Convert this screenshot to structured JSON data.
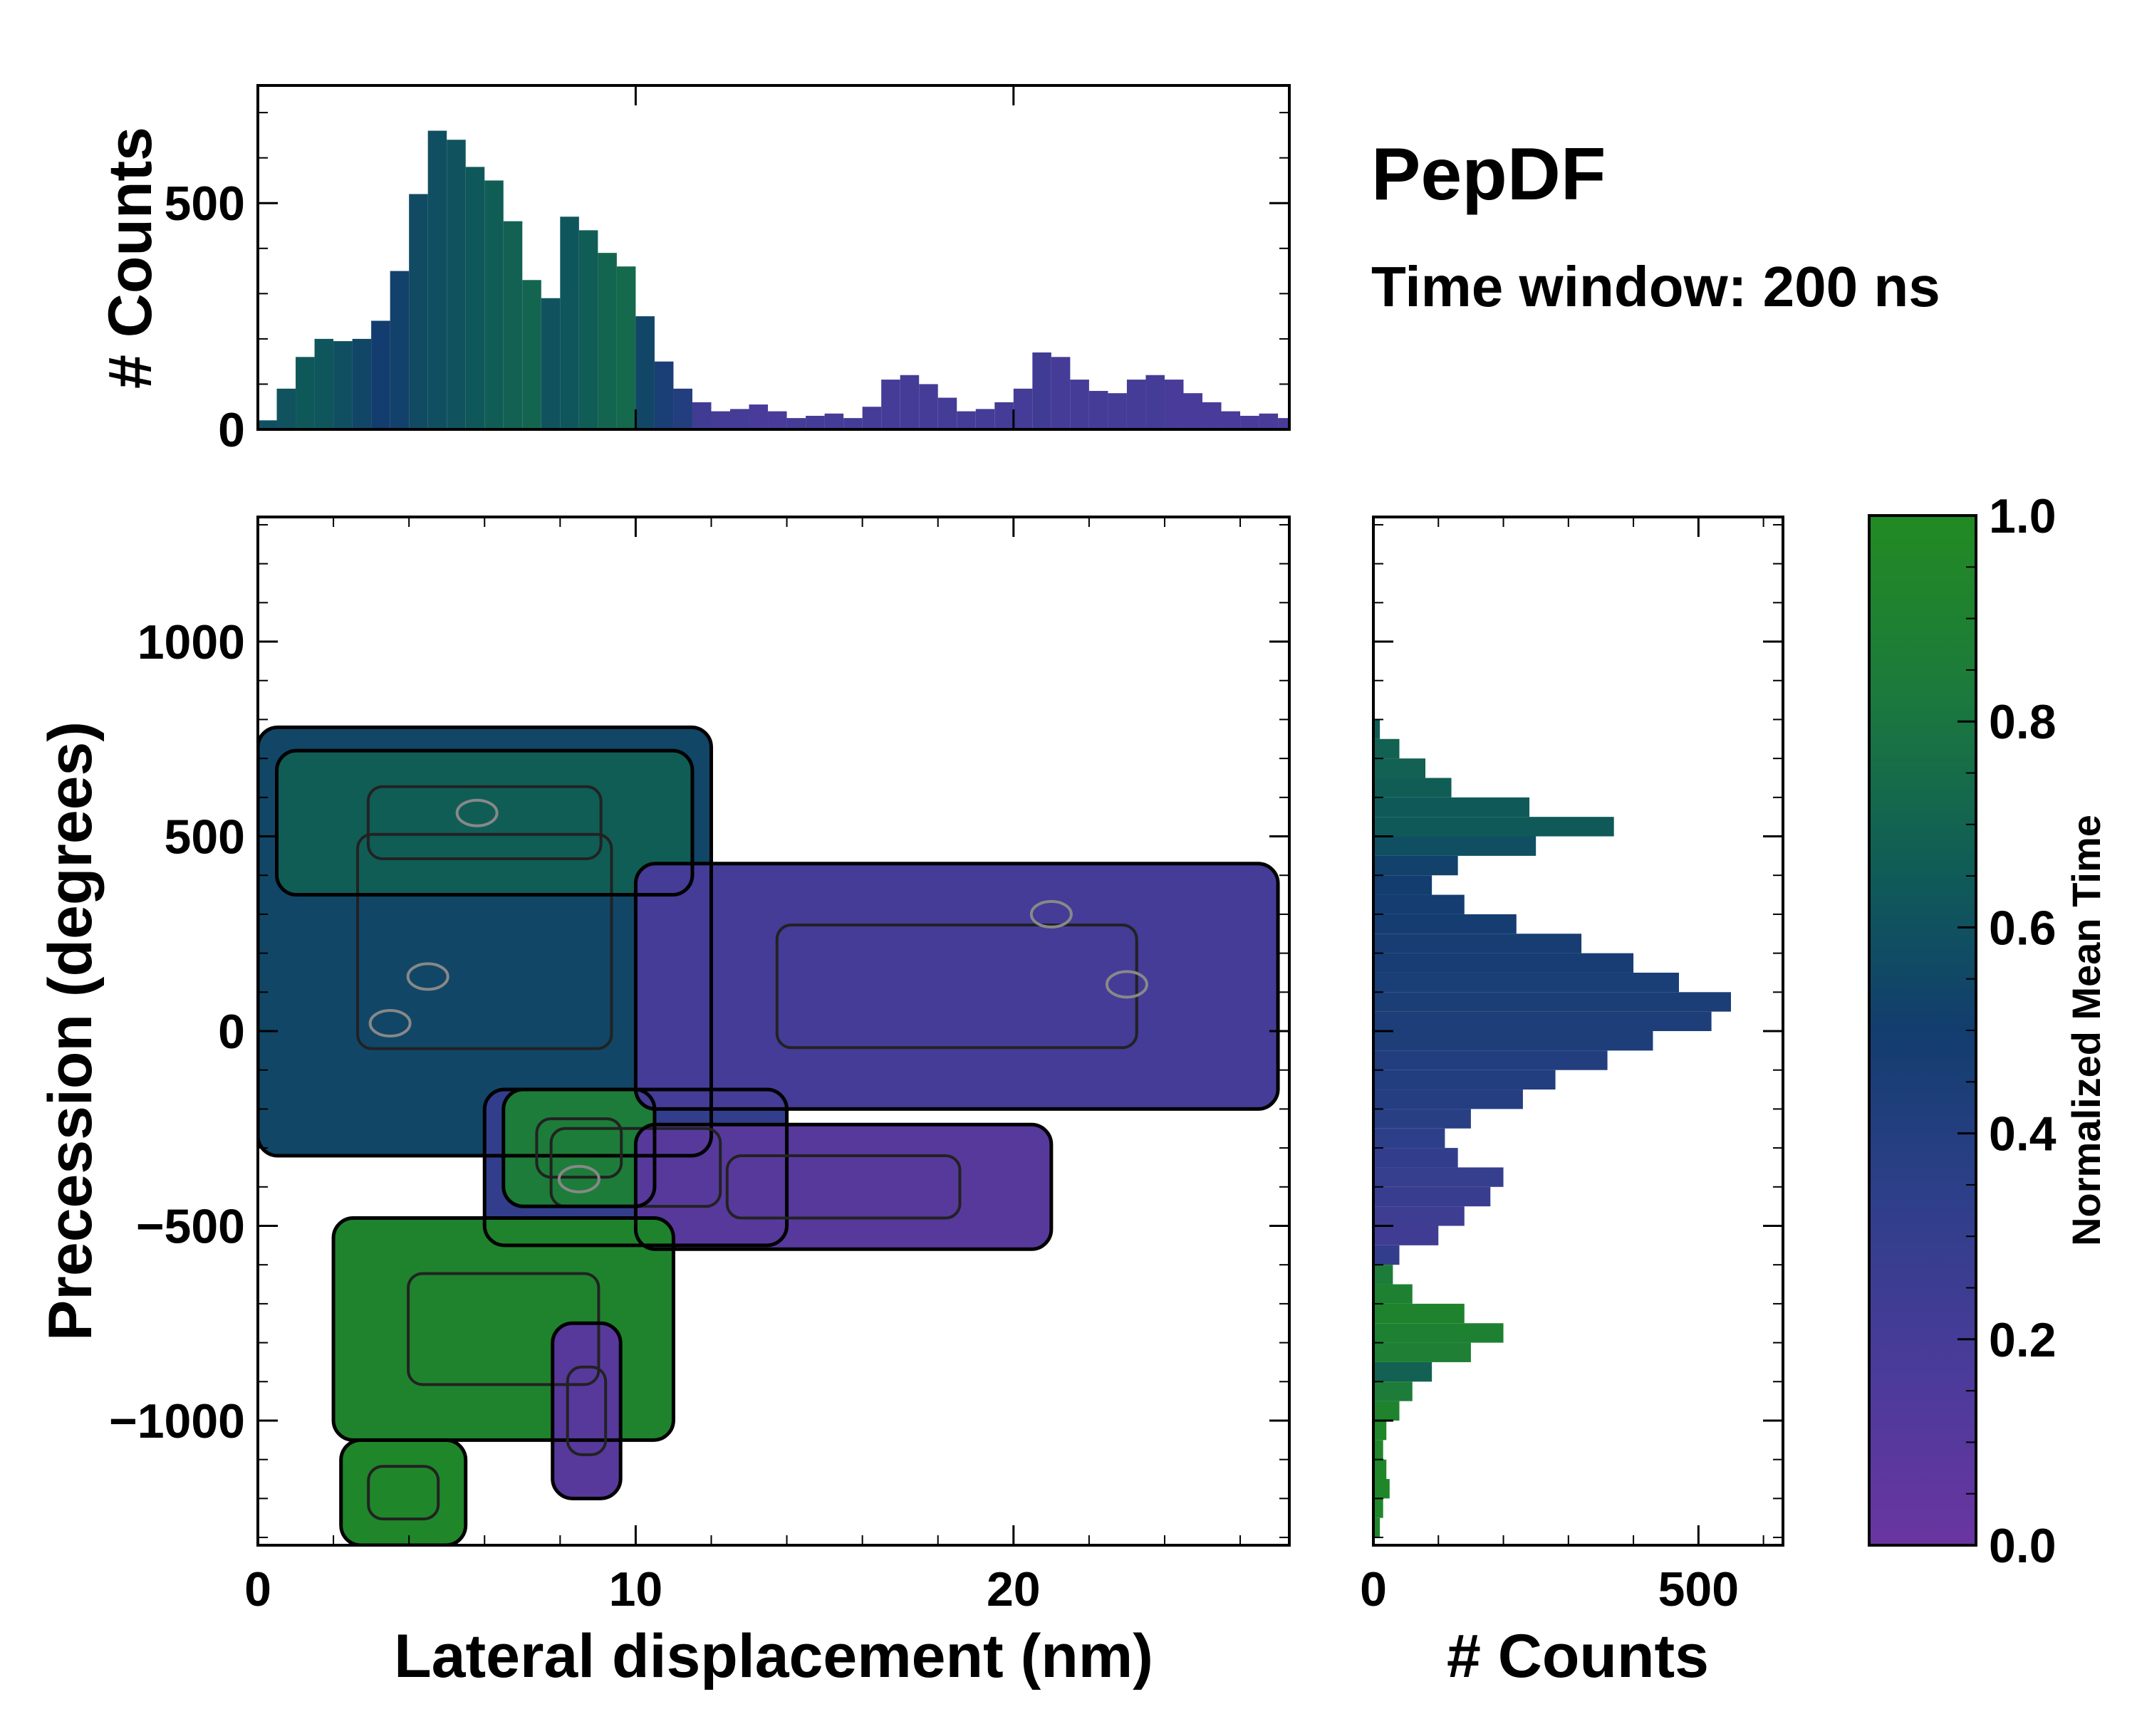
{
  "chart_data": {
    "type": "heatmap",
    "title": "PepDF",
    "subtitle": "Time window: 200 ns",
    "main": {
      "xlabel": "Lateral displacement (nm)",
      "ylabel": "Precession (degrees)",
      "xlim": [
        0,
        27.3
      ],
      "ylim": [
        -1320,
        1320
      ],
      "xticks": [
        0,
        10,
        20
      ],
      "xtick_labels": [
        "0",
        "10",
        "20"
      ],
      "yticks": [
        -1000,
        -500,
        0,
        500,
        1000
      ],
      "ytick_labels": [
        "−1000",
        "−500",
        "0",
        "500",
        "1000"
      ],
      "regions": [
        {
          "name": "upper-left-cluster",
          "x": [
            0,
            12
          ],
          "y": [
            -320,
            780
          ],
          "mean_time": 0.55
        },
        {
          "name": "upper-left-cluster-top",
          "x": [
            0.5,
            11.5
          ],
          "y": [
            350,
            720
          ],
          "mean_time": 0.68
        },
        {
          "name": "central-band",
          "x": [
            6,
            14
          ],
          "y": [
            -550,
            -150
          ],
          "mean_time": 0.3
        },
        {
          "name": "middle-green",
          "x": [
            6.5,
            10.5
          ],
          "y": [
            -450,
            -150
          ],
          "mean_time": 0.85
        },
        {
          "name": "right-arm-upper",
          "x": [
            10,
            27
          ],
          "y": [
            -200,
            430
          ],
          "mean_time": 0.2
        },
        {
          "name": "right-arm-lower",
          "x": [
            10,
            21
          ],
          "y": [
            -560,
            -240
          ],
          "mean_time": 0.1
        },
        {
          "name": "lower-green",
          "x": [
            2,
            11
          ],
          "y": [
            -1050,
            -480
          ],
          "mean_time": 0.92
        },
        {
          "name": "bottom-tail",
          "x": [
            2.2,
            5.5
          ],
          "y": [
            -1320,
            -1050
          ],
          "mean_time": 0.95
        },
        {
          "name": "lower-purple-tail",
          "x": [
            7.8,
            9.6
          ],
          "y": [
            -1200,
            -750
          ],
          "mean_time": 0.1
        }
      ]
    },
    "top_histogram": {
      "ylabel": "# Counts",
      "ylim": [
        0,
        760
      ],
      "yticks": [
        0,
        500
      ],
      "ytick_labels": [
        "0",
        "500"
      ],
      "x": [
        0,
        0.5,
        1,
        1.5,
        2,
        2.5,
        3,
        3.5,
        4,
        4.5,
        5,
        5.5,
        6,
        6.5,
        7,
        7.5,
        8,
        8.5,
        9,
        9.5,
        10,
        10.5,
        11,
        11.5,
        12,
        12.5,
        13,
        13.5,
        14,
        14.5,
        15,
        15.5,
        16,
        16.5,
        17,
        17.5,
        18,
        18.5,
        19,
        19.5,
        20,
        20.5,
        21,
        21.5,
        22,
        22.5,
        23,
        23.5,
        24,
        24.5,
        25,
        25.5,
        26,
        26.5,
        27
      ],
      "values": [
        20,
        90,
        160,
        200,
        195,
        200,
        240,
        350,
        520,
        660,
        640,
        580,
        550,
        460,
        330,
        290,
        470,
        440,
        390,
        360,
        250,
        150,
        90,
        60,
        40,
        45,
        55,
        40,
        25,
        30,
        35,
        25,
        50,
        110,
        120,
        100,
        70,
        40,
        45,
        60,
        90,
        170,
        160,
        110,
        85,
        80,
        110,
        120,
        110,
        80,
        60,
        40,
        30,
        35,
        25
      ],
      "mean_time": [
        0.6,
        0.62,
        0.65,
        0.64,
        0.6,
        0.55,
        0.5,
        0.52,
        0.58,
        0.6,
        0.62,
        0.65,
        0.68,
        0.7,
        0.72,
        0.62,
        0.64,
        0.68,
        0.72,
        0.74,
        0.55,
        0.45,
        0.4,
        0.22,
        0.2,
        0.2,
        0.18,
        0.18,
        0.2,
        0.2,
        0.2,
        0.2,
        0.2,
        0.2,
        0.2,
        0.2,
        0.2,
        0.2,
        0.2,
        0.2,
        0.2,
        0.22,
        0.2,
        0.2,
        0.2,
        0.2,
        0.2,
        0.2,
        0.18,
        0.18,
        0.18,
        0.18,
        0.18,
        0.18,
        0.18
      ]
    },
    "right_histogram": {
      "xlabel": "# Counts",
      "xlim": [
        0,
        630
      ],
      "xticks": [
        0,
        500
      ],
      "xtick_labels": [
        "0",
        "500"
      ],
      "y": [
        775,
        725,
        675,
        625,
        575,
        525,
        475,
        425,
        375,
        325,
        275,
        225,
        175,
        125,
        75,
        25,
        -25,
        -75,
        -125,
        -175,
        -225,
        -275,
        -325,
        -375,
        -425,
        -475,
        -525,
        -575,
        -625,
        -675,
        -725,
        -775,
        -825,
        -875,
        -925,
        -975,
        -1025,
        -1075,
        -1125,
        -1175,
        -1225,
        -1275
      ],
      "values": [
        10,
        40,
        80,
        120,
        240,
        370,
        250,
        130,
        90,
        140,
        220,
        320,
        400,
        470,
        550,
        520,
        430,
        360,
        280,
        230,
        150,
        110,
        130,
        200,
        180,
        140,
        100,
        40,
        30,
        60,
        140,
        200,
        150,
        90,
        60,
        40,
        20,
        15,
        20,
        25,
        15,
        10
      ],
      "mean_time": [
        0.68,
        0.7,
        0.7,
        0.68,
        0.66,
        0.66,
        0.6,
        0.52,
        0.5,
        0.48,
        0.48,
        0.47,
        0.46,
        0.45,
        0.44,
        0.42,
        0.42,
        0.4,
        0.4,
        0.38,
        0.36,
        0.32,
        0.3,
        0.28,
        0.26,
        0.24,
        0.22,
        0.3,
        0.85,
        0.9,
        0.92,
        0.9,
        0.88,
        0.7,
        0.85,
        0.92,
        0.95,
        0.95,
        0.95,
        0.95,
        0.95,
        0.95
      ]
    },
    "colorbar": {
      "label": "Normalized Mean Time",
      "range": [
        0,
        1
      ],
      "ticks": [
        0.0,
        0.2,
        0.4,
        0.6,
        0.8,
        1.0
      ],
      "tick_labels": [
        "0.0",
        "0.2",
        "0.4",
        "0.6",
        "0.8",
        "1.0"
      ],
      "colors": [
        "#6a35a0",
        "#4a3b9a",
        "#2c3f88",
        "#123d6e",
        "#0f5b58",
        "#1c7a3c",
        "#228b22"
      ]
    }
  }
}
